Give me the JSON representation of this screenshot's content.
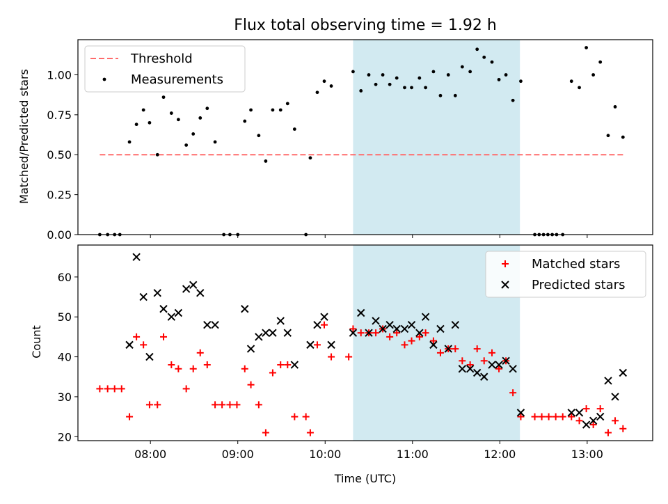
{
  "title": "Flux total observing time = 1.92 h",
  "colors": {
    "threshold": "#ff6b6b",
    "measurement": "#000000",
    "matched": "#ff0000",
    "predicted": "#000000",
    "shade": "#add8e6"
  },
  "chart_data": [
    {
      "type": "scatter",
      "panel": "top",
      "ylabel": "Matched/Predicted stars",
      "xlim": [
        7.17,
        13.75
      ],
      "ylim": [
        0,
        1.22
      ],
      "yticks": [
        0.0,
        0.25,
        0.5,
        0.75,
        1.0
      ],
      "ytick_labels": [
        "0.00",
        "0.25",
        "0.50",
        "0.75",
        "1.00"
      ],
      "xticks": [
        8,
        9,
        10,
        11,
        12,
        13
      ],
      "shaded_region": [
        10.32,
        12.23
      ],
      "legend": {
        "position": "top-left",
        "entries": [
          "Threshold",
          "Measurements"
        ]
      },
      "threshold": {
        "name": "Threshold",
        "value": 0.5,
        "x_range": [
          7.42,
          13.42
        ]
      },
      "series": [
        {
          "name": "Measurements",
          "points": [
            [
              7.42,
              0
            ],
            [
              7.51,
              0
            ],
            [
              7.59,
              0
            ],
            [
              7.65,
              0
            ],
            [
              7.76,
              0.58
            ],
            [
              7.84,
              0.69
            ],
            [
              7.92,
              0.78
            ],
            [
              7.99,
              0.7
            ],
            [
              8.08,
              0.5
            ],
            [
              8.15,
              0.86
            ],
            [
              8.24,
              0.76
            ],
            [
              8.32,
              0.72
            ],
            [
              8.41,
              0.56
            ],
            [
              8.49,
              0.63
            ],
            [
              8.57,
              0.73
            ],
            [
              8.65,
              0.79
            ],
            [
              8.74,
              0.58
            ],
            [
              8.84,
              0
            ],
            [
              8.91,
              0
            ],
            [
              9.0,
              0
            ],
            [
              9.08,
              0.71
            ],
            [
              9.15,
              0.78
            ],
            [
              9.24,
              0.62
            ],
            [
              9.32,
              0.46
            ],
            [
              9.4,
              0.78
            ],
            [
              9.49,
              0.78
            ],
            [
              9.57,
              0.82
            ],
            [
              9.65,
              0.66
            ],
            [
              9.78,
              0
            ],
            [
              9.83,
              0.48
            ],
            [
              9.91,
              0.89
            ],
            [
              9.99,
              0.96
            ],
            [
              10.07,
              0.93
            ],
            [
              10.32,
              1.02
            ],
            [
              10.41,
              0.9
            ],
            [
              10.5,
              1.0
            ],
            [
              10.58,
              0.94
            ],
            [
              10.66,
              1.0
            ],
            [
              10.74,
              0.94
            ],
            [
              10.82,
              0.98
            ],
            [
              10.91,
              0.92
            ],
            [
              10.99,
              0.92
            ],
            [
              11.08,
              0.98
            ],
            [
              11.15,
              0.92
            ],
            [
              11.24,
              1.02
            ],
            [
              11.32,
              0.87
            ],
            [
              11.41,
              1.0
            ],
            [
              11.49,
              0.87
            ],
            [
              11.57,
              1.05
            ],
            [
              11.66,
              1.02
            ],
            [
              11.74,
              1.16
            ],
            [
              11.82,
              1.11
            ],
            [
              11.91,
              1.08
            ],
            [
              11.99,
              0.97
            ],
            [
              12.07,
              1.0
            ],
            [
              12.15,
              0.84
            ],
            [
              12.24,
              0.96
            ],
            [
              12.4,
              0
            ],
            [
              12.45,
              0
            ],
            [
              12.5,
              0
            ],
            [
              12.55,
              0
            ],
            [
              12.6,
              0
            ],
            [
              12.65,
              0
            ],
            [
              12.72,
              0
            ],
            [
              12.82,
              0.96
            ],
            [
              12.91,
              0.92
            ],
            [
              12.99,
              1.17
            ],
            [
              13.07,
              1.0
            ],
            [
              13.15,
              1.08
            ],
            [
              13.24,
              0.62
            ],
            [
              13.32,
              0.8
            ],
            [
              13.41,
              0.61
            ]
          ]
        }
      ]
    },
    {
      "type": "scatter",
      "panel": "bottom",
      "xlabel": "Time (UTC)",
      "ylabel": "Count",
      "xlim": [
        7.17,
        13.75
      ],
      "ylim": [
        19,
        68
      ],
      "yticks": [
        20,
        30,
        40,
        50,
        60
      ],
      "xticks": [
        8,
        9,
        10,
        11,
        12,
        13
      ],
      "xtick_labels": [
        "08:00",
        "09:00",
        "10:00",
        "11:00",
        "12:00",
        "13:00"
      ],
      "shaded_region": [
        10.32,
        12.23
      ],
      "legend": {
        "position": "top-right",
        "entries": [
          "Matched stars",
          "Predicted stars"
        ]
      },
      "series": [
        {
          "name": "Matched stars",
          "marker": "plus",
          "points": [
            [
              7.42,
              32
            ],
            [
              7.51,
              32
            ],
            [
              7.59,
              32
            ],
            [
              7.67,
              32
            ],
            [
              7.76,
              25
            ],
            [
              7.84,
              45
            ],
            [
              7.92,
              43
            ],
            [
              7.99,
              28
            ],
            [
              8.08,
              28
            ],
            [
              8.15,
              45
            ],
            [
              8.24,
              38
            ],
            [
              8.32,
              37
            ],
            [
              8.41,
              32
            ],
            [
              8.49,
              37
            ],
            [
              8.57,
              41
            ],
            [
              8.65,
              38
            ],
            [
              8.74,
              28
            ],
            [
              8.82,
              28
            ],
            [
              8.91,
              28
            ],
            [
              8.99,
              28
            ],
            [
              9.08,
              37
            ],
            [
              9.15,
              33
            ],
            [
              9.24,
              28
            ],
            [
              9.32,
              21
            ],
            [
              9.4,
              36
            ],
            [
              9.49,
              38
            ],
            [
              9.57,
              38
            ],
            [
              9.65,
              25
            ],
            [
              9.78,
              25
            ],
            [
              9.83,
              21
            ],
            [
              9.91,
              43
            ],
            [
              9.99,
              48
            ],
            [
              10.07,
              40
            ],
            [
              10.27,
              40
            ],
            [
              10.32,
              47
            ],
            [
              10.41,
              46
            ],
            [
              10.5,
              46
            ],
            [
              10.58,
              46
            ],
            [
              10.66,
              47
            ],
            [
              10.74,
              45
            ],
            [
              10.82,
              46
            ],
            [
              10.91,
              43
            ],
            [
              10.99,
              44
            ],
            [
              11.08,
              45
            ],
            [
              11.15,
              46
            ],
            [
              11.24,
              44
            ],
            [
              11.32,
              41
            ],
            [
              11.41,
              42
            ],
            [
              11.49,
              42
            ],
            [
              11.57,
              39
            ],
            [
              11.66,
              38
            ],
            [
              11.74,
              42
            ],
            [
              11.82,
              39
            ],
            [
              11.91,
              41
            ],
            [
              11.99,
              37
            ],
            [
              12.07,
              39
            ],
            [
              12.15,
              31
            ],
            [
              12.24,
              25
            ],
            [
              12.4,
              25
            ],
            [
              12.48,
              25
            ],
            [
              12.56,
              25
            ],
            [
              12.64,
              25
            ],
            [
              12.72,
              25
            ],
            [
              12.82,
              25
            ],
            [
              12.91,
              24
            ],
            [
              12.99,
              27
            ],
            [
              13.07,
              23
            ],
            [
              13.15,
              27
            ],
            [
              13.24,
              21
            ],
            [
              13.32,
              24
            ],
            [
              13.41,
              22
            ]
          ]
        },
        {
          "name": "Predicted stars",
          "marker": "x",
          "points": [
            [
              7.76,
              43
            ],
            [
              7.84,
              65
            ],
            [
              7.92,
              55
            ],
            [
              7.99,
              40
            ],
            [
              8.08,
              56
            ],
            [
              8.15,
              52
            ],
            [
              8.24,
              50
            ],
            [
              8.32,
              51
            ],
            [
              8.41,
              57
            ],
            [
              8.49,
              58
            ],
            [
              8.57,
              56
            ],
            [
              8.65,
              48
            ],
            [
              8.74,
              48
            ],
            [
              9.08,
              52
            ],
            [
              9.15,
              42
            ],
            [
              9.24,
              45
            ],
            [
              9.32,
              46
            ],
            [
              9.4,
              46
            ],
            [
              9.49,
              49
            ],
            [
              9.57,
              46
            ],
            [
              9.65,
              38
            ],
            [
              9.83,
              43
            ],
            [
              9.91,
              48
            ],
            [
              9.99,
              50
            ],
            [
              10.07,
              43
            ],
            [
              10.32,
              46
            ],
            [
              10.41,
              51
            ],
            [
              10.5,
              46
            ],
            [
              10.58,
              49
            ],
            [
              10.66,
              47
            ],
            [
              10.74,
              48
            ],
            [
              10.82,
              47
            ],
            [
              10.91,
              47
            ],
            [
              10.99,
              48
            ],
            [
              11.08,
              46
            ],
            [
              11.15,
              50
            ],
            [
              11.24,
              43
            ],
            [
              11.32,
              47
            ],
            [
              11.41,
              42
            ],
            [
              11.49,
              48
            ],
            [
              11.57,
              37
            ],
            [
              11.66,
              37
            ],
            [
              11.74,
              36
            ],
            [
              11.82,
              35
            ],
            [
              11.91,
              38
            ],
            [
              11.99,
              38
            ],
            [
              12.07,
              39
            ],
            [
              12.15,
              37
            ],
            [
              12.24,
              26
            ],
            [
              12.82,
              26
            ],
            [
              12.91,
              26
            ],
            [
              12.99,
              23
            ],
            [
              13.07,
              24
            ],
            [
              13.15,
              25
            ],
            [
              13.24,
              34
            ],
            [
              13.32,
              30
            ],
            [
              13.41,
              36
            ]
          ]
        }
      ]
    }
  ]
}
